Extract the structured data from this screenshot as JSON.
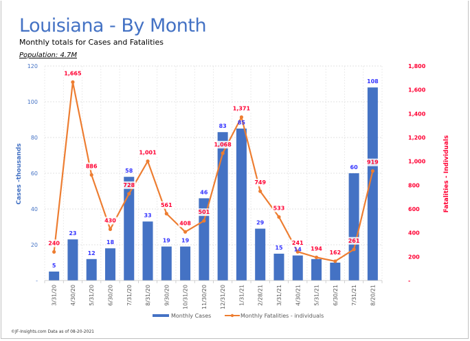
{
  "header": {
    "title": "Louisiana - By Month",
    "subtitle": "Monthly totals for Cases and Fatalities",
    "population": "Population: 4.7M"
  },
  "footer": {
    "credit": "©JF-Insights.com  Data as of 08-20-2021"
  },
  "colors": {
    "bars": "#4472c4",
    "line": "#ed7d31",
    "fatality_label": "#ff0033",
    "case_label": "#3333ff",
    "left_axis": "#4472c4",
    "right_axis": "#ff0033"
  },
  "chart_data": {
    "type": "bar+line",
    "categories": [
      "3/31/20",
      "4/30/20",
      "5/31/20",
      "6/30/20",
      "7/31/20",
      "8/31/20",
      "9/30/20",
      "10/31/20",
      "11/30/20",
      "12/31/20",
      "1/31/21",
      "2/28/21",
      "3/31/21",
      "4/30/21",
      "5/31/21",
      "6/30/21",
      "7/31/21",
      "8/20/21"
    ],
    "series": [
      {
        "name": "Monthly Cases",
        "type": "bar",
        "axis": "left",
        "values": [
          5,
          23,
          12,
          18,
          58,
          33,
          19,
          19,
          46,
          83,
          85,
          29,
          15,
          14,
          12,
          10,
          60,
          108
        ],
        "labels": [
          "5",
          "23",
          "12",
          "18",
          "58",
          "33",
          "19",
          "19",
          "46",
          "83",
          "85",
          "29",
          "15",
          "14",
          "",
          "",
          "60",
          "108"
        ]
      },
      {
        "name": "Monthly Fatalities - individuals",
        "type": "line",
        "axis": "right",
        "values": [
          240,
          1665,
          886,
          430,
          728,
          1001,
          561,
          408,
          501,
          1068,
          1371,
          749,
          533,
          241,
          194,
          162,
          261,
          919
        ],
        "labels": [
          "240",
          "1,665",
          "886",
          "430",
          "728",
          "1,001",
          "561",
          "408",
          "501",
          "1,068",
          "1,371",
          "749",
          "533",
          "241",
          "194",
          "162",
          "261",
          "919"
        ]
      }
    ],
    "ylabel_left": "Cases -thousands",
    "ylabel_right": "Fatalities - Individuals",
    "ylim_left": [
      0,
      120
    ],
    "ylim_right": [
      0,
      1800
    ],
    "yticks_left": [
      "-",
      "20",
      "40",
      "60",
      "80",
      "100",
      "120"
    ],
    "yticks_right": [
      "-",
      "200",
      "400",
      "600",
      "800",
      "1,000",
      "1,200",
      "1,400",
      "1,600",
      "1,800"
    ],
    "legend": [
      "Monthly Cases",
      "Monthly Fatalities - individuals"
    ],
    "legend_position": "bottom",
    "grid": true
  }
}
